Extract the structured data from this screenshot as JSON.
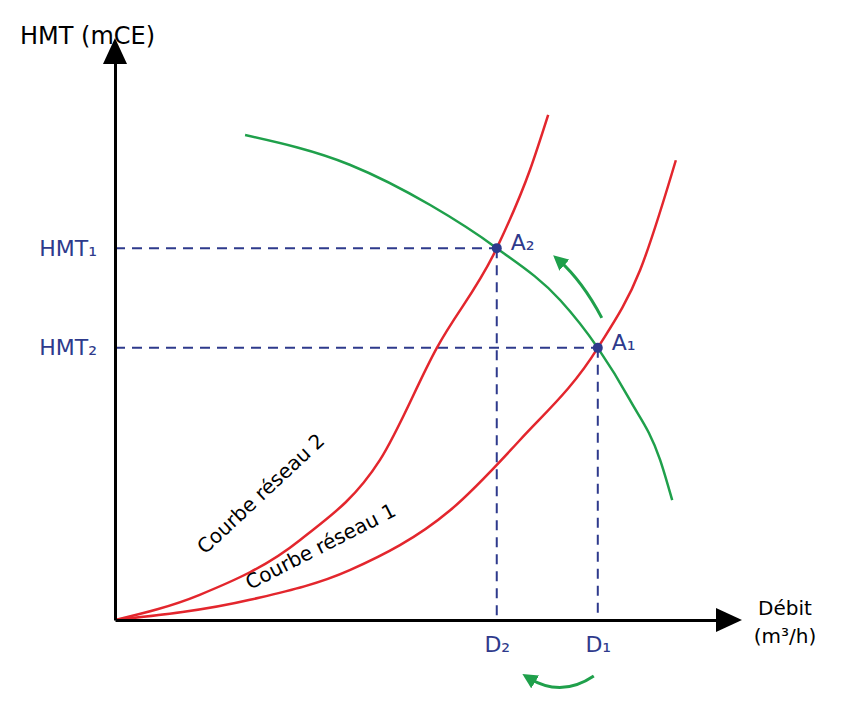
{
  "chart_data": {
    "type": "line",
    "y_label": "HMT (mCE)",
    "x_label": "Débit (m³/h)",
    "xlim": [
      0,
      100
    ],
    "ylim": [
      0,
      100
    ],
    "xticks": [
      {
        "value": 63.1,
        "label": "D₂"
      },
      {
        "value": 79.8,
        "label": "D₁"
      }
    ],
    "yticks": [
      {
        "value": 66.4,
        "label": "HMT₁"
      },
      {
        "value": 48.6,
        "label": "HMT₂"
      }
    ],
    "grid": false,
    "series": [
      {
        "name": "Courbe réseau 1",
        "color": "#e3262d",
        "x": [
          0,
          22.3,
          38.8,
          55.4,
          66.9,
          79.8,
          86.8,
          92.7
        ],
        "values": [
          0,
          3.6,
          8.9,
          19.6,
          32.1,
          48.6,
          62.5,
          82.1
        ]
      },
      {
        "name": "Courbe réseau 2",
        "color": "#e3262d",
        "x": [
          0,
          14,
          30.6,
          43.8,
          53.2,
          63.1,
          68.6,
          71.6
        ],
        "values": [
          0,
          4.5,
          14.3,
          28.6,
          48.6,
          66.4,
          80.4,
          90.2
        ]
      },
      {
        "color": "#1fa04b",
        "x": [
          21.5,
          38.8,
          52.1,
          63.1,
          73.6,
          79.8,
          85.1,
          90.1,
          92.1
        ],
        "values": [
          86.6,
          81.3,
          74.1,
          66.4,
          57.1,
          48.6,
          39.3,
          28.6,
          21.4
        ]
      }
    ],
    "points": [
      {
        "label": "A₁",
        "x": 79.8,
        "y": 48.6
      },
      {
        "label": "A₂",
        "x": 63.1,
        "y": 66.4
      }
    ]
  }
}
